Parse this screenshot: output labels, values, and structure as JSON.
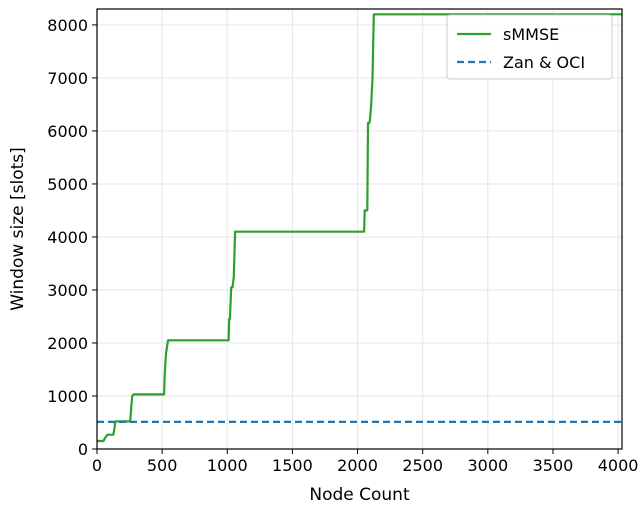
{
  "chart_data": {
    "type": "line",
    "xlabel": "Node Count",
    "ylabel": "Window size [slots]",
    "xlim": [
      0,
      4030
    ],
    "ylim": [
      0,
      8300
    ],
    "xticks": [
      0,
      500,
      1000,
      1500,
      2000,
      2500,
      3000,
      3500,
      4000
    ],
    "yticks": [
      0,
      1000,
      2000,
      3000,
      4000,
      5000,
      6000,
      7000,
      8000
    ],
    "grid": true,
    "legend_position": "top-right",
    "series": [
      {
        "name": "sMMSE",
        "color": "#2ca02c",
        "style": "solid",
        "x": [
          0,
          50,
          60,
          80,
          100,
          110,
          125,
          135,
          140,
          255,
          260,
          270,
          280,
          290,
          515,
          520,
          530,
          545,
          555,
          1010,
          1015,
          1020,
          1030,
          1040,
          1050,
          1060,
          1070,
          1080,
          2050,
          2055,
          2060,
          2075,
          2080,
          2090,
          2095,
          2105,
          2115,
          2125,
          2130,
          4030
        ],
        "y": [
          150,
          150,
          200,
          270,
          270,
          270,
          270,
          400,
          520,
          520,
          700,
          1000,
          1030,
          1030,
          1030,
          1400,
          1800,
          2050,
          2050,
          2050,
          2450,
          2450,
          3050,
          3050,
          3250,
          4100,
          4100,
          4100,
          4100,
          4500,
          4500,
          4500,
          6150,
          6150,
          6200,
          6500,
          7000,
          8200,
          8200,
          8200
        ]
      },
      {
        "name": "Zan & OCI",
        "color": "#1f77b4",
        "style": "dashed",
        "x": [
          0,
          4030
        ],
        "y": [
          512,
          512
        ]
      }
    ]
  }
}
